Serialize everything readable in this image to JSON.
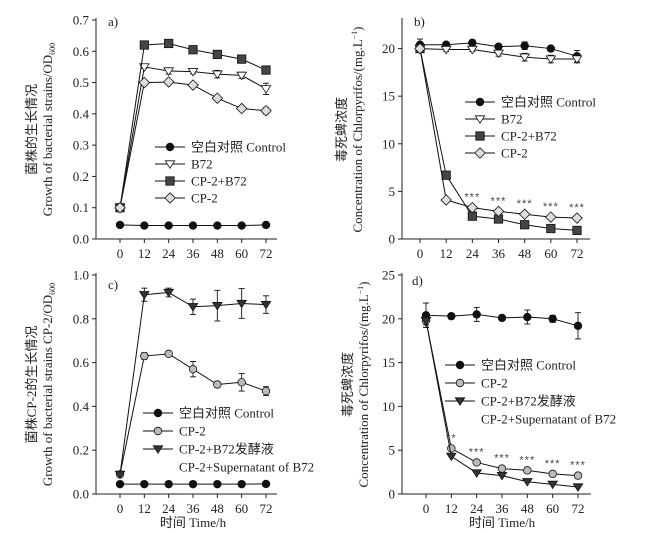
{
  "chart_data": [
    {
      "type": "line",
      "panel": "a)",
      "ylabel_cn": "菌株的生长情况",
      "ylabel_en": "Growth of bacterial strains/OD",
      "ylabel_sub": "600",
      "xlabel": "",
      "x": [
        0,
        12,
        24,
        36,
        48,
        60,
        72
      ],
      "xticks": [
        "0",
        "12",
        "24",
        "36",
        "48",
        "60",
        "72"
      ],
      "ylim": [
        0,
        0.7
      ],
      "yticks": [
        "0.0",
        "0.1",
        "0.2",
        "0.3",
        "0.4",
        "0.5",
        "0.6",
        "0.7"
      ],
      "legend_position": "center-right",
      "series": [
        {
          "name": "空白对照 Control",
          "marker": "circle",
          "fill": "#111111",
          "values": [
            0.045,
            0.043,
            0.043,
            0.043,
            0.043,
            0.043,
            0.045
          ],
          "errors": [
            0,
            0,
            0,
            0,
            0,
            0,
            0
          ]
        },
        {
          "name": "B72",
          "marker": "triangle-down",
          "fill": "#ffffff",
          "values": [
            0.1,
            0.55,
            0.537,
            0.535,
            0.527,
            0.523,
            0.48
          ],
          "errors": [
            0,
            0.005,
            0.01,
            0.007,
            0.012,
            0.01,
            0.018
          ]
        },
        {
          "name": "CP-2+B72",
          "marker": "square",
          "fill": "#444444",
          "values": [
            0.1,
            0.62,
            0.625,
            0.605,
            0.59,
            0.575,
            0.54
          ],
          "errors": [
            0,
            0.008,
            0.006,
            0.01,
            0.006,
            0.006,
            0.008
          ]
        },
        {
          "name": "CP-2",
          "marker": "diamond",
          "fill": "#dddddd",
          "values": [
            0.1,
            0.5,
            0.502,
            0.492,
            0.45,
            0.417,
            0.41
          ],
          "errors": [
            0,
            0.005,
            0.005,
            0.005,
            0.005,
            0.008,
            0.01
          ]
        }
      ],
      "annotations": []
    },
    {
      "type": "line",
      "panel": "b)",
      "ylabel_cn": "毒死蜱浓度",
      "ylabel_en": "Concentration of Chlorpyrifos/(mg.L",
      "ylabel_sup": "−1",
      "ylabel_tail": ")",
      "xlabel": "",
      "x": [
        0,
        12,
        24,
        36,
        48,
        60,
        72
      ],
      "xticks": [
        "0",
        "12",
        "24",
        "36",
        "48",
        "60",
        "72"
      ],
      "ylim": [
        0,
        23
      ],
      "yticks": [
        "0",
        "5",
        "10",
        "15",
        "20"
      ],
      "legend_position": "center-right",
      "series": [
        {
          "name": "空白对照 Control",
          "marker": "circle",
          "fill": "#111111",
          "values": [
            20.4,
            20.4,
            20.6,
            20.2,
            20.3,
            20.0,
            19.2
          ],
          "errors": [
            0.6,
            0.2,
            0.3,
            0.2,
            0.4,
            0.2,
            0.6
          ]
        },
        {
          "name": "B72",
          "marker": "triangle-down",
          "fill": "#ffffff",
          "values": [
            20.0,
            19.9,
            19.9,
            19.5,
            19.1,
            18.9,
            18.9
          ],
          "errors": [
            0.3,
            0.2,
            0.2,
            0.3,
            0.4,
            0.4,
            0.4
          ]
        },
        {
          "name": "CP-2+B72",
          "marker": "square",
          "fill": "#444444",
          "values": [
            20.0,
            6.7,
            2.4,
            2.1,
            1.5,
            1.1,
            0.9
          ],
          "errors": [
            0,
            0,
            0,
            0,
            0,
            0,
            0
          ]
        },
        {
          "name": "CP-2",
          "marker": "diamond",
          "fill": "#dddddd",
          "values": [
            20.0,
            4.1,
            3.3,
            2.9,
            2.6,
            2.3,
            2.2
          ],
          "errors": [
            0,
            0,
            0,
            0,
            0,
            0,
            0
          ]
        }
      ],
      "annotations": [
        {
          "x": 24,
          "y": 3.3,
          "text": "***"
        },
        {
          "x": 36,
          "y": 2.9,
          "text": "***"
        },
        {
          "x": 48,
          "y": 2.6,
          "text": "***"
        },
        {
          "x": 60,
          "y": 2.3,
          "text": "***"
        },
        {
          "x": 72,
          "y": 2.2,
          "text": "***"
        }
      ]
    },
    {
      "type": "line",
      "panel": "c)",
      "ylabel_cn": "菌株CP-2的生长情况",
      "ylabel_en": "Growth of bacterial strains CP-2/OD",
      "ylabel_sub": "600",
      "xlabel": "时间 Time/h",
      "x": [
        0,
        12,
        24,
        36,
        48,
        60,
        72
      ],
      "xticks": [
        "0",
        "12",
        "24",
        "36",
        "48",
        "60",
        "72"
      ],
      "ylim": [
        0,
        1.0
      ],
      "yticks": [
        "0.0",
        "0.2",
        "0.4",
        "0.6",
        "0.8",
        "1.0"
      ],
      "legend_position": "bottom-right",
      "series": [
        {
          "name": "空白对照 Control",
          "marker": "circle",
          "fill": "#111111",
          "values": [
            0.045,
            0.045,
            0.045,
            0.045,
            0.045,
            0.045,
            0.046
          ],
          "errors": [
            0,
            0,
            0,
            0,
            0,
            0,
            0
          ]
        },
        {
          "name": "CP-2",
          "marker": "circle",
          "fill": "#bbbbbb",
          "values": [
            0.09,
            0.63,
            0.64,
            0.57,
            0.5,
            0.51,
            0.47
          ],
          "errors": [
            0,
            0.015,
            0.005,
            0.035,
            0.01,
            0.04,
            0.02
          ]
        },
        {
          "name": "CP-2+B72发酵液",
          "name2": "CP-2+Supernatant of B72",
          "marker": "triangle-down",
          "fill": "#333333",
          "values": [
            0.09,
            0.91,
            0.92,
            0.855,
            0.86,
            0.87,
            0.865
          ],
          "errors": [
            0,
            0.03,
            0.02,
            0.035,
            0.07,
            0.068,
            0.04
          ]
        }
      ],
      "annotations": []
    },
    {
      "type": "line",
      "panel": "d)",
      "ylabel_cn": "毒死蜱浓度",
      "ylabel_en": "Concentration of Chlorpyrifos/(mg.L",
      "ylabel_sup": "−1",
      "ylabel_tail": ")",
      "xlabel": "时间 Time/h",
      "x": [
        0,
        12,
        24,
        36,
        48,
        60,
        72
      ],
      "xticks": [
        "0",
        "12",
        "24",
        "36",
        "48",
        "60",
        "72"
      ],
      "ylim": [
        0,
        25
      ],
      "yticks": [
        "0",
        "5",
        "10",
        "15",
        "20",
        "25"
      ],
      "legend_position": "center-right",
      "series": [
        {
          "name": "空白对照 Control",
          "marker": "circle",
          "fill": "#111111",
          "values": [
            20.4,
            20.3,
            20.5,
            20.1,
            20.2,
            20.0,
            19.2
          ],
          "errors": [
            1.4,
            0.3,
            0.8,
            0.2,
            0.8,
            0.4,
            1.5
          ]
        },
        {
          "name": "CP-2",
          "marker": "circle",
          "fill": "#bbbbbb",
          "values": [
            19.8,
            5.2,
            3.6,
            2.9,
            2.7,
            2.3,
            2.1
          ],
          "errors": [
            0.5,
            0,
            0,
            0,
            0,
            0,
            0
          ]
        },
        {
          "name": "CP-2+B72发酵液",
          "name2": "CP-2+Supernatant of B72",
          "marker": "triangle-down",
          "fill": "#333333",
          "values": [
            19.8,
            4.3,
            2.4,
            2.1,
            1.4,
            1.1,
            0.8
          ],
          "errors": [
            0.5,
            0,
            0,
            0,
            0,
            0,
            0
          ]
        }
      ],
      "annotations": [
        {
          "x": 12,
          "y": 5.2,
          "text": "**"
        },
        {
          "x": 24,
          "y": 3.6,
          "text": "***"
        },
        {
          "x": 36,
          "y": 2.9,
          "text": "***"
        },
        {
          "x": 48,
          "y": 2.7,
          "text": "***"
        },
        {
          "x": 60,
          "y": 2.3,
          "text": "***"
        },
        {
          "x": 72,
          "y": 2.1,
          "text": "***"
        }
      ]
    }
  ]
}
